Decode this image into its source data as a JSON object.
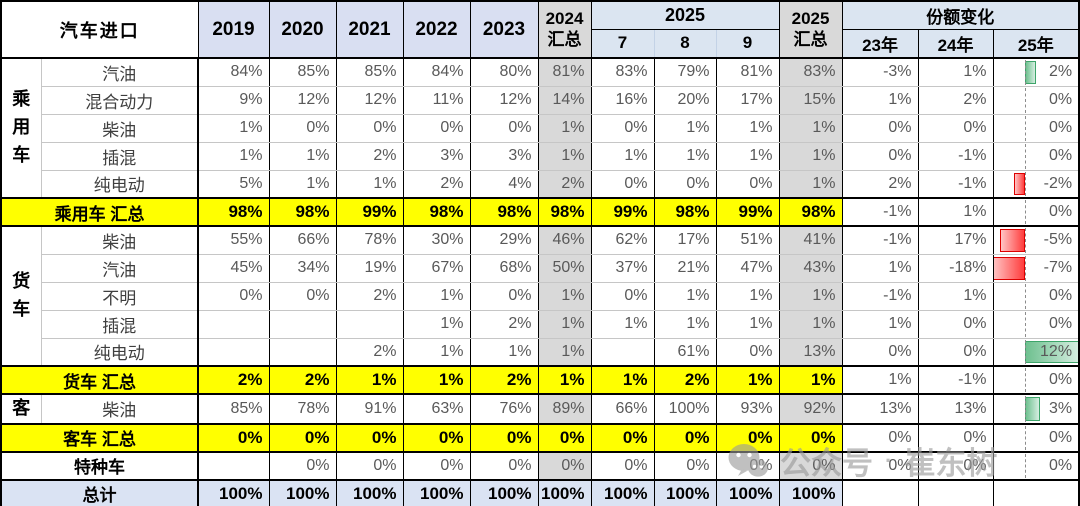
{
  "header": {
    "title": "汽车进口",
    "years": [
      "2019",
      "2020",
      "2021",
      "2022",
      "2023"
    ],
    "col_2024_sum": {
      "line1": "2024",
      "line2": "汇总"
    },
    "group_2025": "2025",
    "months": [
      "7",
      "8",
      "9"
    ],
    "col_2025_sum": {
      "line1": "2025",
      "line2": "汇总"
    },
    "share_change": {
      "title": "份额变化",
      "cols": [
        "23年",
        "24年",
        "25年"
      ]
    }
  },
  "rows": [
    {
      "group": "乘用车",
      "group_span": 5,
      "label": "汽油",
      "kind": "data",
      "values": [
        "84%",
        "85%",
        "85%",
        "84%",
        "80%",
        "81%",
        "83%",
        "79%",
        "81%",
        "83%",
        "-3%",
        "1%",
        "2%"
      ],
      "bar": 2
    },
    {
      "label": "混合动力",
      "kind": "data",
      "values": [
        "9%",
        "12%",
        "12%",
        "11%",
        "12%",
        "14%",
        "16%",
        "20%",
        "17%",
        "15%",
        "1%",
        "2%",
        "0%"
      ],
      "bar": 0
    },
    {
      "label": "柴油",
      "kind": "data",
      "values": [
        "1%",
        "0%",
        "0%",
        "0%",
        "0%",
        "1%",
        "0%",
        "1%",
        "1%",
        "1%",
        "0%",
        "0%",
        "0%"
      ],
      "bar": 0
    },
    {
      "label": "插混",
      "kind": "data",
      "values": [
        "1%",
        "1%",
        "2%",
        "3%",
        "3%",
        "1%",
        "1%",
        "1%",
        "1%",
        "1%",
        "0%",
        "-1%",
        "0%"
      ],
      "bar": 0
    },
    {
      "label": "纯电动",
      "kind": "data",
      "values": [
        "5%",
        "1%",
        "1%",
        "2%",
        "4%",
        "2%",
        "0%",
        "0%",
        "0%",
        "1%",
        "2%",
        "-1%",
        "-2%"
      ],
      "bar": -2
    },
    {
      "label": "乘用车 汇总",
      "kind": "subtotal",
      "values": [
        "98%",
        "98%",
        "99%",
        "98%",
        "98%",
        "98%",
        "99%",
        "98%",
        "99%",
        "98%",
        "-1%",
        "1%",
        "0%"
      ],
      "bar": 0
    },
    {
      "group": "货车",
      "group_span": 5,
      "label": "柴油",
      "kind": "data",
      "values": [
        "55%",
        "66%",
        "78%",
        "30%",
        "29%",
        "46%",
        "62%",
        "17%",
        "51%",
        "41%",
        "-1%",
        "17%",
        "-5%"
      ],
      "bar": -5
    },
    {
      "label": "汽油",
      "kind": "data",
      "values": [
        "45%",
        "34%",
        "19%",
        "67%",
        "68%",
        "50%",
        "37%",
        "21%",
        "47%",
        "43%",
        "1%",
        "-18%",
        "-7%"
      ],
      "bar": -7
    },
    {
      "label": "不明",
      "kind": "data",
      "values": [
        "0%",
        "0%",
        "2%",
        "1%",
        "0%",
        "1%",
        "0%",
        "1%",
        "1%",
        "1%",
        "-1%",
        "1%",
        "0%"
      ],
      "bar": 0
    },
    {
      "label": "插混",
      "kind": "data",
      "values": [
        "",
        "",
        "",
        "1%",
        "2%",
        "1%",
        "1%",
        "1%",
        "1%",
        "1%",
        "1%",
        "0%",
        "0%"
      ],
      "bar": 0
    },
    {
      "label": "纯电动",
      "kind": "data",
      "values": [
        "",
        "",
        "2%",
        "1%",
        "1%",
        "1%",
        "",
        "61%",
        "0%",
        "13%",
        "0%",
        "0%",
        "12%"
      ],
      "bar": 12
    },
    {
      "label": "货车 汇总",
      "kind": "subtotal",
      "values": [
        "2%",
        "2%",
        "1%",
        "1%",
        "2%",
        "1%",
        "1%",
        "2%",
        "1%",
        "1%",
        "1%",
        "-1%",
        "0%"
      ],
      "bar": 0
    },
    {
      "group": "客",
      "group_span": 1,
      "label": "柴油",
      "kind": "data",
      "values": [
        "85%",
        "78%",
        "91%",
        "63%",
        "76%",
        "89%",
        "66%",
        "100%",
        "93%",
        "92%",
        "13%",
        "13%",
        "3%"
      ],
      "bar": 3
    },
    {
      "label": "客车 汇总",
      "kind": "subtotal",
      "values": [
        "0%",
        "0%",
        "0%",
        "0%",
        "0%",
        "0%",
        "0%",
        "0%",
        "0%",
        "0%",
        "0%",
        "0%",
        "0%"
      ],
      "bar": 0
    },
    {
      "label": "特种车",
      "kind": "special",
      "values": [
        "",
        "0%",
        "0%",
        "0%",
        "0%",
        "0%",
        "0%",
        "0%",
        "0%",
        "0%",
        "0%",
        "0%",
        "0%"
      ],
      "bar": 0
    },
    {
      "label": "总计",
      "kind": "total",
      "values": [
        "100%",
        "100%",
        "100%",
        "100%",
        "100%",
        "100%",
        "100%",
        "100%",
        "100%",
        "100%",
        "",
        "",
        ""
      ],
      "bar": null
    }
  ],
  "databar": {
    "axis_pct": 36.8,
    "pos_max": 12,
    "neg_max": 7,
    "green": "#63c384",
    "red": "#ff4b4b"
  },
  "watermark": {
    "icon": "wechat-icon",
    "label": "公众号",
    "separator": "·",
    "name": "崔东树"
  },
  "colors": {
    "subtotal_bg": "#ffff00",
    "sum_col_bg": "#d9d9d9",
    "year_header_bg": "#d9dff2",
    "blue_header_bg": "#dbe5f1",
    "total_row_bg": "#dae3f3"
  }
}
